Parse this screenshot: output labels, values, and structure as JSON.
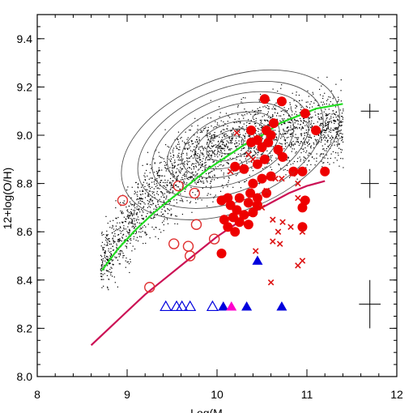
{
  "chart_data": {
    "type": "scatter",
    "title": "",
    "xlabel": "Log(M",
    "ylabel": "12+log(O/H)",
    "xlim": [
      8,
      12
    ],
    "ylim": [
      8.0,
      9.5
    ],
    "x_ticks": [
      8,
      9,
      10,
      11,
      12
    ],
    "x_tick_labels": [
      "8",
      "9",
      "10",
      "11",
      "12"
    ],
    "y_ticks": [
      8.0,
      8.2,
      8.4,
      8.6,
      8.8,
      9.0,
      9.2,
      9.4
    ],
    "y_tick_labels": [
      "8.0",
      "8.2",
      "8.4",
      "8.6",
      "8.8",
      "9.0",
      "9.2",
      "9.4"
    ],
    "grid": false,
    "legend": "none",
    "colors": {
      "filled_circles": "#ee0000",
      "open_circles": "#e03030",
      "crosses": "#dd1111",
      "green_curve": "#22dd22",
      "magenta_curve": "#cc1155",
      "blue_triangles": "#0000dd",
      "magenta_triangle": "#ff00cc",
      "contours": "#555555",
      "background_dots": "#000000"
    },
    "series": [
      {
        "marker": "filled-circle",
        "points": [
          [
            10.53,
            9.15
          ],
          [
            10.72,
            9.14
          ],
          [
            10.38,
            9.02
          ],
          [
            10.55,
            9.02
          ],
          [
            10.6,
            9.0
          ],
          [
            10.63,
            9.05
          ],
          [
            10.45,
            8.98
          ],
          [
            10.38,
            8.97
          ],
          [
            10.5,
            8.95
          ],
          [
            10.57,
            8.97
          ],
          [
            10.68,
            8.94
          ],
          [
            10.73,
            8.91
          ],
          [
            10.53,
            8.9
          ],
          [
            10.45,
            8.88
          ],
          [
            10.98,
            9.09
          ],
          [
            11.1,
            9.02
          ],
          [
            10.2,
            8.87
          ],
          [
            10.3,
            8.86
          ],
          [
            10.6,
            8.83
          ],
          [
            10.5,
            8.82
          ],
          [
            10.4,
            8.8
          ],
          [
            10.85,
            8.85
          ],
          [
            10.95,
            8.85
          ],
          [
            11.2,
            8.85
          ],
          [
            10.37,
            8.76
          ],
          [
            10.45,
            8.74
          ],
          [
            10.55,
            8.76
          ],
          [
            10.12,
            8.74
          ],
          [
            10.25,
            8.74
          ],
          [
            10.05,
            8.73
          ],
          [
            10.15,
            8.71
          ],
          [
            10.35,
            8.72
          ],
          [
            10.45,
            8.71
          ],
          [
            10.22,
            8.69
          ],
          [
            10.4,
            8.68
          ],
          [
            10.3,
            8.67
          ],
          [
            10.18,
            8.66
          ],
          [
            10.08,
            8.65
          ],
          [
            10.25,
            8.64
          ],
          [
            10.35,
            8.63
          ],
          [
            10.12,
            8.62
          ],
          [
            10.2,
            8.6
          ],
          [
            10.98,
            8.73
          ],
          [
            10.95,
            8.62
          ],
          [
            10.95,
            8.7
          ],
          [
            10.05,
            8.51
          ]
        ]
      },
      {
        "marker": "open-circle",
        "points": [
          [
            8.95,
            8.73
          ],
          [
            9.57,
            8.79
          ],
          [
            9.75,
            8.76
          ],
          [
            9.77,
            8.63
          ],
          [
            9.52,
            8.55
          ],
          [
            9.68,
            8.54
          ],
          [
            9.7,
            8.5
          ],
          [
            9.97,
            8.57
          ],
          [
            9.25,
            8.37
          ]
        ]
      },
      {
        "marker": "cross",
        "points": [
          [
            10.22,
            9.01
          ],
          [
            10.35,
            8.92
          ],
          [
            10.4,
            8.9
          ],
          [
            10.15,
            8.85
          ],
          [
            10.65,
            8.82
          ],
          [
            10.72,
            8.82
          ],
          [
            10.84,
            8.84
          ],
          [
            10.9,
            8.8
          ],
          [
            10.55,
            8.77
          ],
          [
            10.9,
            8.74
          ],
          [
            10.5,
            8.7
          ],
          [
            10.62,
            8.65
          ],
          [
            10.73,
            8.64
          ],
          [
            10.68,
            8.6
          ],
          [
            10.95,
            8.6
          ],
          [
            10.82,
            8.62
          ],
          [
            10.62,
            8.56
          ],
          [
            10.7,
            8.55
          ],
          [
            10.43,
            8.52
          ],
          [
            10.95,
            8.48
          ],
          [
            10.9,
            8.46
          ],
          [
            10.6,
            8.39
          ]
        ]
      },
      {
        "marker": "open-triangle",
        "points": [
          [
            9.43,
            8.29
          ],
          [
            9.55,
            8.29
          ],
          [
            9.61,
            8.29
          ],
          [
            9.7,
            8.29
          ],
          [
            9.95,
            8.29
          ]
        ]
      },
      {
        "marker": "filled-triangle",
        "points": [
          [
            10.07,
            8.29
          ],
          [
            10.33,
            8.29
          ],
          [
            10.72,
            8.29
          ],
          [
            10.45,
            8.48
          ]
        ]
      },
      {
        "marker": "filled-triangle-magenta",
        "points": [
          [
            10.16,
            8.29
          ]
        ]
      },
      {
        "marker": "line-green",
        "points": [
          [
            8.72,
            8.44
          ],
          [
            8.9,
            8.53
          ],
          [
            9.1,
            8.61
          ],
          [
            9.3,
            8.68
          ],
          [
            9.5,
            8.74
          ],
          [
            9.7,
            8.8
          ],
          [
            9.9,
            8.86
          ],
          [
            10.1,
            8.91
          ],
          [
            10.3,
            8.96
          ],
          [
            10.5,
            9.0
          ],
          [
            10.7,
            9.05
          ],
          [
            10.9,
            9.08
          ],
          [
            11.1,
            9.11
          ],
          [
            11.4,
            9.13
          ]
        ]
      },
      {
        "marker": "line-magenta",
        "points": [
          [
            8.6,
            8.13
          ],
          [
            8.8,
            8.2
          ],
          [
            9.0,
            8.27
          ],
          [
            9.2,
            8.34
          ],
          [
            9.4,
            8.4
          ],
          [
            9.6,
            8.46
          ],
          [
            9.8,
            8.52
          ],
          [
            10.0,
            8.58
          ],
          [
            10.2,
            8.63
          ],
          [
            10.4,
            8.68
          ],
          [
            10.6,
            8.72
          ],
          [
            10.8,
            8.76
          ],
          [
            11.0,
            8.79
          ],
          [
            11.2,
            8.81
          ]
        ]
      },
      {
        "marker": "errorbar",
        "points": [
          [
            11.7,
            9.1,
            0.1,
            0.03
          ],
          [
            11.7,
            8.8,
            0.1,
            0.06
          ],
          [
            11.7,
            8.3,
            0.12,
            0.1
          ]
        ]
      }
    ]
  }
}
